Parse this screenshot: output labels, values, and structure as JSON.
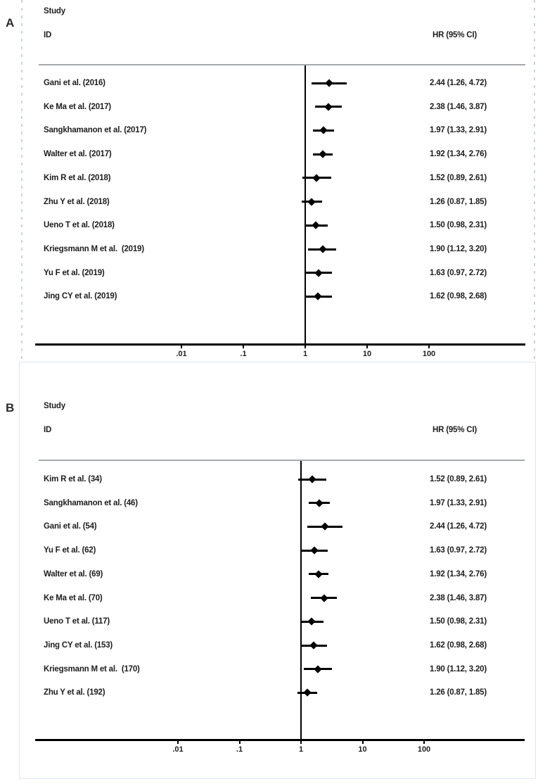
{
  "chart_data": [
    {
      "type": "forest",
      "panel": "A",
      "columns": {
        "study": "Study",
        "id": "ID",
        "hr": "HR (95% CI)"
      },
      "x_axis": {
        "scale": "log10",
        "ticks": [
          0.01,
          0.1,
          1,
          10,
          100
        ],
        "tick_labels": [
          ".01",
          ".1",
          "1",
          "10",
          "100"
        ],
        "reference_line": 1
      },
      "studies": [
        {
          "label": "Gani et al. (2016)",
          "hr": 2.44,
          "ci_low": 1.26,
          "ci_high": 4.72,
          "hr_text": "2.44 (1.26, 4.72)"
        },
        {
          "label": "Ke Ma et al. (2017)",
          "hr": 2.38,
          "ci_low": 1.46,
          "ci_high": 3.87,
          "hr_text": "2.38 (1.46, 3.87)"
        },
        {
          "label": "Sangkhamanon et al. (2017)",
          "hr": 1.97,
          "ci_low": 1.33,
          "ci_high": 2.91,
          "hr_text": "1.97 (1.33, 2.91)"
        },
        {
          "label": "Walter et al. (2017)",
          "hr": 1.92,
          "ci_low": 1.34,
          "ci_high": 2.76,
          "hr_text": "1.92 (1.34, 2.76)"
        },
        {
          "label": "Kim R et al. (2018)",
          "hr": 1.52,
          "ci_low": 0.89,
          "ci_high": 2.61,
          "hr_text": "1.52 (0.89, 2.61)"
        },
        {
          "label": "Zhu Y et al. (2018)",
          "hr": 1.26,
          "ci_low": 0.87,
          "ci_high": 1.85,
          "hr_text": "1.26 (0.87, 1.85)"
        },
        {
          "label": "Ueno T et al. (2018)",
          "hr": 1.5,
          "ci_low": 0.98,
          "ci_high": 2.31,
          "hr_text": "1.50 (0.98, 2.31)"
        },
        {
          "label": "Kriegsmann M et al.  (2019)",
          "hr": 1.9,
          "ci_low": 1.12,
          "ci_high": 3.2,
          "hr_text": "1.90 (1.12, 3.20)"
        },
        {
          "label": "Yu F et al. (2019)",
          "hr": 1.63,
          "ci_low": 0.97,
          "ci_high": 2.72,
          "hr_text": "1.63 (0.97, 2.72)"
        },
        {
          "label": "Jing CY et al. (2019)",
          "hr": 1.62,
          "ci_low": 0.98,
          "ci_high": 2.68,
          "hr_text": "1.62 (0.98, 2.68)"
        }
      ]
    },
    {
      "type": "forest",
      "panel": "B",
      "columns": {
        "study": "Study",
        "id": "ID",
        "hr": "HR (95% CI)"
      },
      "x_axis": {
        "scale": "log10",
        "ticks": [
          0.01,
          0.1,
          1,
          10,
          100
        ],
        "tick_labels": [
          ".01",
          ".1",
          "1",
          "10",
          "100"
        ],
        "reference_line": 1
      },
      "studies": [
        {
          "label": "Kim R et al. (34)",
          "hr": 1.52,
          "ci_low": 0.89,
          "ci_high": 2.61,
          "hr_text": "1.52 (0.89, 2.61)"
        },
        {
          "label": "Sangkhamanon et al. (46)",
          "hr": 1.97,
          "ci_low": 1.33,
          "ci_high": 2.91,
          "hr_text": "1.97 (1.33, 2.91)"
        },
        {
          "label": "Gani et al. (54)",
          "hr": 2.44,
          "ci_low": 1.26,
          "ci_high": 4.72,
          "hr_text": "2.44 (1.26, 4.72)"
        },
        {
          "label": "Yu F et al. (62)",
          "hr": 1.63,
          "ci_low": 0.97,
          "ci_high": 2.72,
          "hr_text": "1.63 (0.97, 2.72)"
        },
        {
          "label": "Walter et al. (69)",
          "hr": 1.92,
          "ci_low": 1.34,
          "ci_high": 2.76,
          "hr_text": "1.92 (1.34, 2.76)"
        },
        {
          "label": "Ke Ma et al. (70)",
          "hr": 2.38,
          "ci_low": 1.46,
          "ci_high": 3.87,
          "hr_text": "2.38 (1.46, 3.87)"
        },
        {
          "label": "Ueno T et al. (117)",
          "hr": 1.5,
          "ci_low": 0.98,
          "ci_high": 2.31,
          "hr_text": "1.50 (0.98, 2.31)"
        },
        {
          "label": "Jing CY et al. (153)",
          "hr": 1.62,
          "ci_low": 0.98,
          "ci_high": 2.68,
          "hr_text": "1.62 (0.98, 2.68)"
        },
        {
          "label": "Kriegsmann M et al.  (170)",
          "hr": 1.9,
          "ci_low": 1.12,
          "ci_high": 3.2,
          "hr_text": "1.90 (1.12, 3.20)"
        },
        {
          "label": "Zhu Y et al. (192)",
          "hr": 1.26,
          "ci_low": 0.87,
          "ci_high": 1.85,
          "hr_text": "1.26 (0.87, 1.85)"
        }
      ]
    }
  ],
  "colors": {
    "marker": "#000000",
    "separator": "#a7a9ac",
    "panel_border": "#dfe7f0",
    "dash_guide": "#ccd2d8"
  }
}
